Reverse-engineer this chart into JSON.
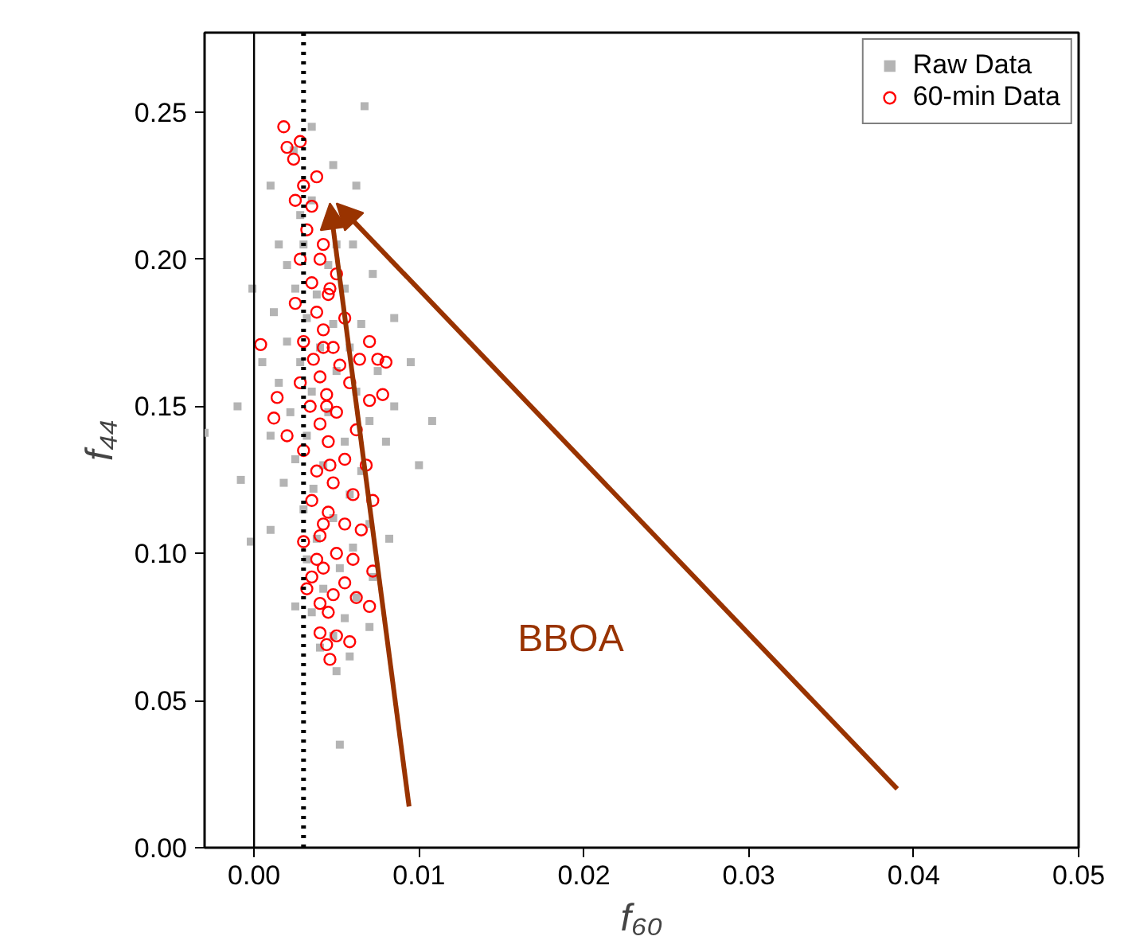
{
  "chart_data": {
    "type": "scatter",
    "xlabel": "f₆₀",
    "ylabel": "f₄₄",
    "xlim": [
      -0.003,
      0.05
    ],
    "ylim": [
      0,
      0.277
    ],
    "xticks": [
      {
        "value": 0,
        "label": "0.00"
      },
      {
        "value": 0.01,
        "label": "0.01"
      },
      {
        "value": 0.02,
        "label": "0.02"
      },
      {
        "value": 0.03,
        "label": "0.03"
      },
      {
        "value": 0.04,
        "label": "0.04"
      },
      {
        "value": 0.05,
        "label": "0.05"
      }
    ],
    "yticks": [
      {
        "value": 0,
        "label": "0.00"
      },
      {
        "value": 0.05,
        "label": "0.05"
      },
      {
        "value": 0.1,
        "label": "0.10"
      },
      {
        "value": 0.15,
        "label": "0.15"
      },
      {
        "value": 0.2,
        "label": "0.20"
      },
      {
        "value": 0.25,
        "label": "0.25"
      }
    ],
    "grid": false,
    "legend": "top right",
    "series": [
      {
        "name": "Raw Data",
        "color": "#b4b4b4",
        "marker": "square",
        "x": [
          0.0067,
          0.0035,
          0.0024,
          0.0048,
          0.001,
          0.0062,
          0.0035,
          0.0028,
          0.0015,
          0.003,
          0.006,
          0.002,
          0.0045,
          0.0072,
          -0.0001,
          0.0025,
          0.0038,
          0.0055,
          0.0012,
          0.0032,
          0.0048,
          0.0065,
          0.0085,
          0.002,
          0.004,
          0.0058,
          0.0005,
          0.0028,
          0.005,
          0.0075,
          0.0095,
          0.0015,
          0.0035,
          0.0062,
          0.0085,
          -0.001,
          0.0022,
          0.0045,
          0.007,
          0.0108,
          0.001,
          0.0032,
          0.0055,
          0.008,
          -0.003,
          0.0025,
          0.0042,
          0.0065,
          0.01,
          0.0018,
          0.0036,
          0.0058,
          -0.0008,
          0.003,
          0.0048,
          0.007,
          0.001,
          0.0038,
          0.006,
          0.0082,
          -0.0002,
          0.0032,
          0.0052,
          0.0072,
          0.0042,
          0.0062,
          0.0035,
          0.0055,
          0.0048,
          0.007,
          0.004,
          0.0058,
          0.0025,
          0.005,
          0.0052,
          0.005
        ],
        "values": [
          0.252,
          0.245,
          0.237,
          0.232,
          0.225,
          0.225,
          0.22,
          0.215,
          0.205,
          0.205,
          0.205,
          0.198,
          0.198,
          0.195,
          0.19,
          0.19,
          0.188,
          0.19,
          0.182,
          0.18,
          0.178,
          0.178,
          0.18,
          0.172,
          0.17,
          0.17,
          0.165,
          0.165,
          0.162,
          0.162,
          0.165,
          0.158,
          0.155,
          0.155,
          0.15,
          0.15,
          0.148,
          0.148,
          0.145,
          0.145,
          0.14,
          0.14,
          0.138,
          0.138,
          0.141,
          0.132,
          0.13,
          0.128,
          0.13,
          0.124,
          0.122,
          0.12,
          0.125,
          0.115,
          0.112,
          0.11,
          0.108,
          0.105,
          0.102,
          0.105,
          0.104,
          0.098,
          0.095,
          0.092,
          0.088,
          0.085,
          0.08,
          0.078,
          0.072,
          0.075,
          0.068,
          0.065,
          0.082,
          0.06,
          0.035,
          0.205
        ]
      },
      {
        "name": "60-min Data",
        "color": "#ff0000",
        "marker": "circle",
        "x": [
          0.0018,
          0.0028,
          0.002,
          0.0024,
          0.0038,
          0.003,
          0.0025,
          0.0035,
          0.0032,
          0.0042,
          0.0028,
          0.004,
          0.005,
          0.0035,
          0.0045,
          0.0025,
          0.0038,
          0.0055,
          0.0042,
          0.003,
          0.0048,
          0.007,
          0.0036,
          0.0052,
          0.0064,
          0.0075,
          0.008,
          0.004,
          0.0028,
          0.0058,
          0.0044,
          0.007,
          0.0078,
          0.0012,
          0.0034,
          0.005,
          0.004,
          0.0062,
          0.0014,
          0.0004,
          0.002,
          0.0045,
          0.003,
          0.0055,
          0.0068,
          0.0038,
          0.0048,
          0.006,
          0.0035,
          0.0072,
          0.0045,
          0.0055,
          0.004,
          0.0065,
          0.003,
          0.005,
          0.006,
          0.0042,
          0.0072,
          0.0035,
          0.0055,
          0.0048,
          0.0062,
          0.0032,
          0.004,
          0.007,
          0.0045,
          0.004,
          0.005,
          0.0044,
          0.0046,
          0.0058,
          0.0038,
          0.0042,
          0.0046,
          0.0044,
          0.0042,
          0.0046
        ],
        "values": [
          0.245,
          0.24,
          0.238,
          0.234,
          0.228,
          0.225,
          0.22,
          0.218,
          0.21,
          0.205,
          0.2,
          0.2,
          0.195,
          0.192,
          0.188,
          0.185,
          0.182,
          0.18,
          0.176,
          0.172,
          0.17,
          0.172,
          0.166,
          0.164,
          0.166,
          0.166,
          0.165,
          0.16,
          0.158,
          0.158,
          0.154,
          0.152,
          0.154,
          0.146,
          0.15,
          0.148,
          0.144,
          0.142,
          0.153,
          0.171,
          0.14,
          0.138,
          0.135,
          0.132,
          0.13,
          0.128,
          0.124,
          0.12,
          0.118,
          0.118,
          0.114,
          0.11,
          0.106,
          0.108,
          0.104,
          0.1,
          0.098,
          0.095,
          0.094,
          0.092,
          0.09,
          0.086,
          0.085,
          0.088,
          0.083,
          0.082,
          0.08,
          0.073,
          0.072,
          0.069,
          0.064,
          0.07,
          0.098,
          0.11,
          0.13,
          0.15,
          0.17,
          0.19
        ]
      }
    ],
    "ref_lines": [
      {
        "axis": "x",
        "value": 0,
        "color": "#000000",
        "line_style": "solid"
      },
      {
        "axis": "x",
        "value": 0.003,
        "color": "#000000",
        "line_style": "dotted"
      }
    ],
    "annotations": [
      "BBOA"
    ]
  }
}
